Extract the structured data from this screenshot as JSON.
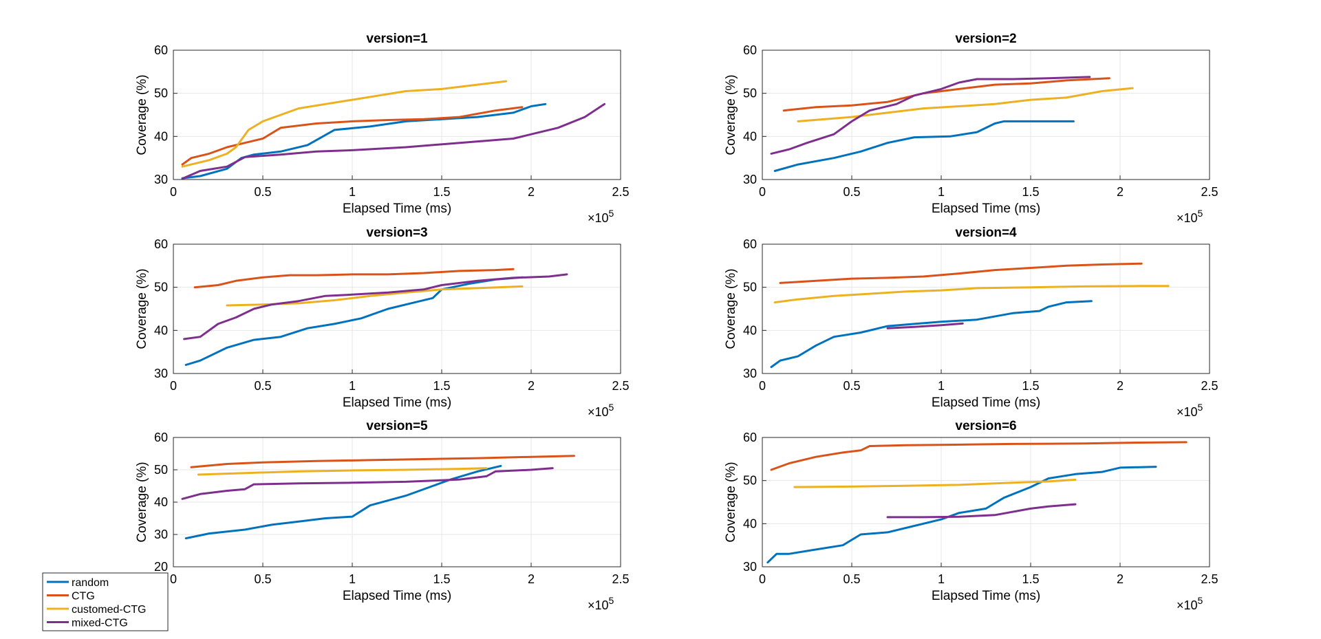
{
  "series_names": [
    "random",
    "CTG",
    "customed-CTG",
    "mixed-CTG"
  ],
  "series_colors": [
    "#0072BD",
    "#D95319",
    "#EDB120",
    "#7E2F8E"
  ],
  "legend_placement": "bottom-left",
  "chart_data": [
    {
      "type": "line",
      "title": "version=1",
      "xlabel": "Elapsed Time (ms)",
      "ylabel": "Coverage (%)",
      "x_exponent_label": "×10",
      "x_exponent": "5",
      "xlim": [
        0,
        2.5
      ],
      "ylim": [
        30,
        60
      ],
      "xticks": [
        "0",
        "0.5",
        "1",
        "1.5",
        "2",
        "2.5"
      ],
      "yticks": [
        "30",
        "40",
        "50",
        "60"
      ],
      "grid": true,
      "series": [
        {
          "x": [
            0.05,
            0.15,
            0.3,
            0.38,
            0.45,
            0.6,
            0.75,
            0.9,
            1.1,
            1.3,
            1.5,
            1.7,
            1.9,
            2.0,
            2.08
          ],
          "y": [
            30.3,
            30.8,
            32.5,
            35.0,
            35.8,
            36.5,
            38.0,
            41.5,
            42.3,
            43.5,
            44.0,
            44.5,
            45.5,
            47.0,
            47.5
          ]
        },
        {
          "x": [
            0.05,
            0.1,
            0.2,
            0.3,
            0.4,
            0.5,
            0.6,
            0.8,
            1.0,
            1.2,
            1.4,
            1.6,
            1.8,
            1.95
          ],
          "y": [
            33.5,
            35.0,
            36.0,
            37.5,
            38.5,
            39.5,
            42.0,
            43.0,
            43.5,
            43.8,
            44.0,
            44.5,
            46.0,
            46.8
          ]
        },
        {
          "x": [
            0.05,
            0.2,
            0.3,
            0.35,
            0.42,
            0.5,
            0.6,
            0.7,
            0.85,
            1.0,
            1.15,
            1.3,
            1.5,
            1.7,
            1.86
          ],
          "y": [
            33.0,
            34.5,
            36.0,
            37.5,
            41.5,
            43.5,
            45.0,
            46.5,
            47.5,
            48.5,
            49.5,
            50.5,
            51.0,
            52.0,
            52.8
          ]
        },
        {
          "x": [
            0.05,
            0.15,
            0.3,
            0.4,
            0.6,
            0.8,
            1.0,
            1.3,
            1.6,
            1.9,
            2.05,
            2.15,
            2.3,
            2.41
          ],
          "y": [
            30.2,
            32.0,
            33.0,
            35.2,
            35.8,
            36.5,
            36.8,
            37.5,
            38.5,
            39.5,
            41.0,
            42.0,
            44.5,
            47.5
          ]
        }
      ]
    },
    {
      "type": "line",
      "title": "version=2",
      "xlabel": "Elapsed Time (ms)",
      "ylabel": "Coverage (%)",
      "x_exponent_label": "×10",
      "x_exponent": "5",
      "xlim": [
        0,
        2.5
      ],
      "ylim": [
        30,
        60
      ],
      "xticks": [
        "0",
        "0.5",
        "1",
        "1.5",
        "2",
        "2.5"
      ],
      "yticks": [
        "30",
        "40",
        "50",
        "60"
      ],
      "grid": true,
      "series": [
        {
          "x": [
            0.07,
            0.2,
            0.4,
            0.55,
            0.7,
            0.85,
            1.05,
            1.2,
            1.3,
            1.35,
            1.5,
            1.74
          ],
          "y": [
            32.0,
            33.5,
            35.0,
            36.5,
            38.5,
            39.8,
            40.0,
            41.0,
            43.0,
            43.5,
            43.5,
            43.5
          ]
        },
        {
          "x": [
            0.12,
            0.3,
            0.5,
            0.7,
            0.9,
            1.1,
            1.3,
            1.5,
            1.7,
            1.94
          ],
          "y": [
            46.0,
            46.8,
            47.2,
            48.0,
            50.0,
            51.0,
            52.0,
            52.3,
            53.0,
            53.5
          ]
        },
        {
          "x": [
            0.2,
            0.35,
            0.5,
            0.7,
            0.9,
            1.1,
            1.3,
            1.5,
            1.7,
            1.9,
            2.07
          ],
          "y": [
            43.5,
            44.0,
            44.5,
            45.5,
            46.5,
            47.0,
            47.5,
            48.5,
            49.0,
            50.5,
            51.2
          ]
        },
        {
          "x": [
            0.05,
            0.15,
            0.25,
            0.4,
            0.5,
            0.6,
            0.75,
            0.85,
            1.0,
            1.1,
            1.2,
            1.4,
            1.6,
            1.83
          ],
          "y": [
            36.0,
            37.0,
            38.5,
            40.5,
            43.5,
            46.0,
            47.5,
            49.5,
            51.0,
            52.5,
            53.3,
            53.3,
            53.5,
            53.8
          ]
        }
      ]
    },
    {
      "type": "line",
      "title": "version=3",
      "xlabel": "Elapsed Time (ms)",
      "ylabel": "Coverage (%)",
      "x_exponent_label": "×10",
      "x_exponent": "5",
      "xlim": [
        0,
        2.5
      ],
      "ylim": [
        30,
        60
      ],
      "xticks": [
        "0",
        "0.5",
        "1",
        "1.5",
        "2",
        "2.5"
      ],
      "yticks": [
        "30",
        "40",
        "50",
        "60"
      ],
      "grid": true,
      "series": [
        {
          "x": [
            0.07,
            0.15,
            0.3,
            0.45,
            0.6,
            0.75,
            0.9,
            1.05,
            1.2,
            1.35,
            1.45,
            1.5,
            1.65,
            1.8,
            1.95
          ],
          "y": [
            32.0,
            33.0,
            36.0,
            37.8,
            38.5,
            40.5,
            41.5,
            42.8,
            45.0,
            46.5,
            47.5,
            49.5,
            50.8,
            51.8,
            52.3
          ]
        },
        {
          "x": [
            0.12,
            0.25,
            0.35,
            0.5,
            0.65,
            0.8,
            1.0,
            1.2,
            1.4,
            1.6,
            1.8,
            1.9
          ],
          "y": [
            50.0,
            50.5,
            51.5,
            52.3,
            52.8,
            52.8,
            53.0,
            53.0,
            53.3,
            53.8,
            54.0,
            54.2
          ]
        },
        {
          "x": [
            0.3,
            0.5,
            0.7,
            0.9,
            1.1,
            1.3,
            1.5,
            1.7,
            1.95
          ],
          "y": [
            45.8,
            46.0,
            46.3,
            47.0,
            48.0,
            48.8,
            49.5,
            49.8,
            50.2
          ]
        },
        {
          "x": [
            0.06,
            0.15,
            0.25,
            0.35,
            0.45,
            0.55,
            0.7,
            0.85,
            1.0,
            1.2,
            1.4,
            1.5,
            1.7,
            1.9,
            2.1,
            2.2
          ],
          "y": [
            38.0,
            38.5,
            41.5,
            43.0,
            45.0,
            46.0,
            46.8,
            48.0,
            48.3,
            48.8,
            49.5,
            50.5,
            51.5,
            52.2,
            52.5,
            53.0
          ]
        }
      ]
    },
    {
      "type": "line",
      "title": "version=4",
      "xlabel": "Elapsed Time (ms)",
      "ylabel": "Coverage (%)",
      "x_exponent_label": "×10",
      "x_exponent": "5",
      "xlim": [
        0,
        2.5
      ],
      "ylim": [
        30,
        60
      ],
      "xticks": [
        "0",
        "0.5",
        "1",
        "1.5",
        "2",
        "2.5"
      ],
      "yticks": [
        "30",
        "40",
        "50",
        "60"
      ],
      "grid": true,
      "series": [
        {
          "x": [
            0.05,
            0.1,
            0.2,
            0.3,
            0.4,
            0.55,
            0.7,
            0.85,
            1.0,
            1.2,
            1.4,
            1.55,
            1.6,
            1.7,
            1.84
          ],
          "y": [
            31.5,
            33.0,
            34.0,
            36.5,
            38.5,
            39.5,
            41.0,
            41.5,
            42.0,
            42.5,
            44.0,
            44.5,
            45.5,
            46.5,
            46.8
          ]
        },
        {
          "x": [
            0.1,
            0.3,
            0.5,
            0.7,
            0.9,
            1.1,
            1.3,
            1.5,
            1.7,
            1.9,
            2.12
          ],
          "y": [
            51.0,
            51.5,
            52.0,
            52.2,
            52.5,
            53.2,
            54.0,
            54.5,
            55.0,
            55.3,
            55.5
          ]
        },
        {
          "x": [
            0.07,
            0.2,
            0.4,
            0.6,
            0.8,
            1.0,
            1.2,
            1.5,
            1.8,
            2.1,
            2.27
          ],
          "y": [
            46.5,
            47.2,
            48.0,
            48.5,
            49.0,
            49.3,
            49.8,
            50.0,
            50.2,
            50.3,
            50.3
          ]
        },
        {
          "x": [
            0.7,
            0.85,
            1.0,
            1.12
          ],
          "y": [
            40.5,
            40.8,
            41.2,
            41.6
          ]
        }
      ]
    },
    {
      "type": "line",
      "title": "version=5",
      "xlabel": "Elapsed Time (ms)",
      "ylabel": "Coverage (%)",
      "x_exponent_label": "×10",
      "x_exponent": "5",
      "xlim": [
        0,
        2.5
      ],
      "ylim": [
        20,
        60
      ],
      "xticks": [
        "0",
        "0.5",
        "1",
        "1.5",
        "2",
        "2.5"
      ],
      "yticks": [
        "20",
        "30",
        "40",
        "50",
        "60"
      ],
      "grid": true,
      "series": [
        {
          "x": [
            0.07,
            0.2,
            0.4,
            0.55,
            0.7,
            0.85,
            1.0,
            1.1,
            1.3,
            1.45,
            1.55,
            1.7,
            1.83
          ],
          "y": [
            28.8,
            30.3,
            31.5,
            33.0,
            34.0,
            35.0,
            35.5,
            39.0,
            42.0,
            45.0,
            47.0,
            49.5,
            51.2
          ]
        },
        {
          "x": [
            0.1,
            0.3,
            0.5,
            0.8,
            1.1,
            1.4,
            1.7,
            2.0,
            2.24
          ],
          "y": [
            50.8,
            51.8,
            52.3,
            52.7,
            53.0,
            53.3,
            53.6,
            54.0,
            54.3
          ]
        },
        {
          "x": [
            0.14,
            0.4,
            0.7,
            1.0,
            1.3,
            1.6,
            1.75
          ],
          "y": [
            48.5,
            49.0,
            49.5,
            49.8,
            50.0,
            50.3,
            50.5
          ]
        },
        {
          "x": [
            0.05,
            0.15,
            0.3,
            0.4,
            0.45,
            0.7,
            1.0,
            1.3,
            1.6,
            1.75,
            1.8,
            2.0,
            2.12
          ],
          "y": [
            41.0,
            42.5,
            43.5,
            44.0,
            45.5,
            45.8,
            46.0,
            46.3,
            47.0,
            48.0,
            49.5,
            50.0,
            50.5
          ]
        }
      ]
    },
    {
      "type": "line",
      "title": "version=6",
      "xlabel": "Elapsed Time (ms)",
      "ylabel": "Coverage (%)",
      "x_exponent_label": "×10",
      "x_exponent": "5",
      "xlim": [
        0,
        2.5
      ],
      "ylim": [
        30,
        60
      ],
      "xticks": [
        "0",
        "0.5",
        "1",
        "1.5",
        "2",
        "2.5"
      ],
      "yticks": [
        "30",
        "40",
        "50",
        "60"
      ],
      "grid": true,
      "series": [
        {
          "x": [
            0.03,
            0.08,
            0.15,
            0.3,
            0.45,
            0.55,
            0.7,
            0.85,
            1.0,
            1.1,
            1.25,
            1.35,
            1.5,
            1.6,
            1.75,
            1.9,
            2.0,
            2.2
          ],
          "y": [
            31.0,
            33.0,
            33.0,
            34.0,
            35.0,
            37.5,
            38.0,
            39.5,
            41.0,
            42.5,
            43.5,
            46.0,
            48.5,
            50.5,
            51.5,
            52.0,
            53.0,
            53.2
          ]
        },
        {
          "x": [
            0.05,
            0.15,
            0.3,
            0.45,
            0.55,
            0.6,
            0.8,
            1.0,
            1.4,
            1.8,
            2.1,
            2.37
          ],
          "y": [
            52.5,
            54.0,
            55.5,
            56.5,
            57.0,
            58.0,
            58.2,
            58.3,
            58.5,
            58.6,
            58.8,
            58.9
          ]
        },
        {
          "x": [
            0.18,
            0.5,
            0.8,
            1.1,
            1.4,
            1.6,
            1.75
          ],
          "y": [
            48.5,
            48.6,
            48.8,
            49.0,
            49.5,
            49.8,
            50.2
          ]
        },
        {
          "x": [
            0.7,
            0.9,
            1.1,
            1.3,
            1.5,
            1.6,
            1.75
          ],
          "y": [
            41.5,
            41.5,
            41.6,
            42.0,
            43.5,
            44.0,
            44.5
          ]
        }
      ]
    }
  ]
}
